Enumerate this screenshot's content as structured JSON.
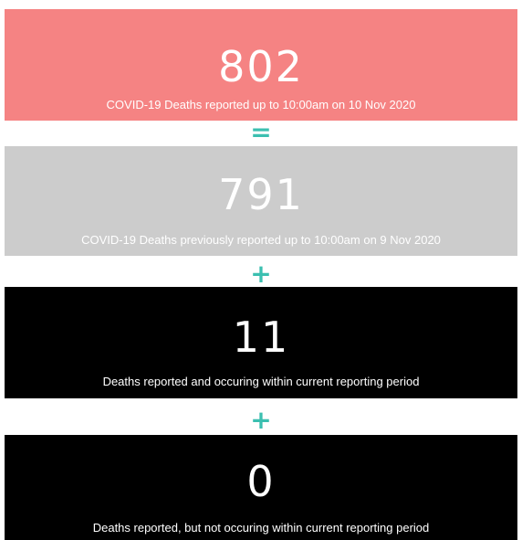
{
  "cards": [
    {
      "value": 802,
      "label": "COVID-19 Deaths reported up to 10:00am on 10 Nov 2020"
    },
    {
      "value": 791,
      "label": "COVID-19 Deaths previously reported up to 10:00am on 9 Nov 2020"
    },
    {
      "value": 11,
      "label": "Deaths reported and occuring within current reporting period"
    },
    {
      "value": 0,
      "label": "Deaths reported, but not occuring within current reporting period"
    }
  ],
  "operators": [
    "=",
    "+",
    "+"
  ]
}
